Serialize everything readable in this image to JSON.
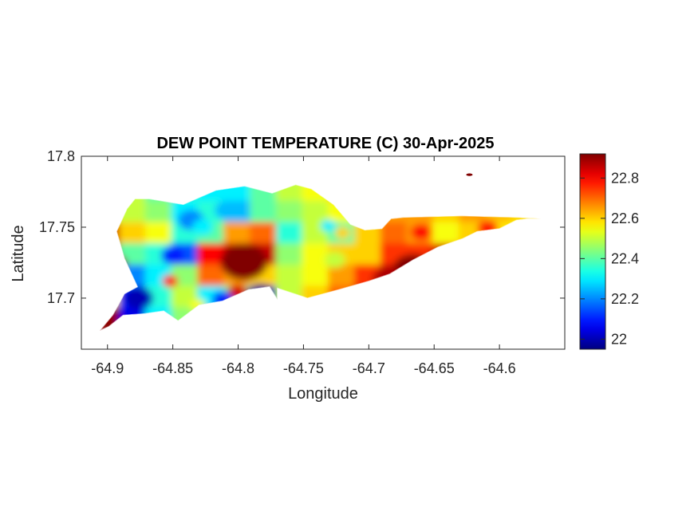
{
  "chart_data": {
    "type": "heatmap",
    "title": "DEW POINT TEMPERATURE (C) 30-Apr-2025",
    "xlabel": "Longitude",
    "ylabel": "Latitude",
    "xlim": [
      -64.92,
      -64.55
    ],
    "ylim": [
      17.664,
      17.8
    ],
    "x_ticks": [
      -64.9,
      -64.85,
      -64.8,
      -64.75,
      -64.7,
      -64.65,
      -64.6
    ],
    "x_tick_labels": [
      "-64.9",
      "-64.85",
      "-64.8",
      "-64.75",
      "-64.7",
      "-64.65",
      "-64.6"
    ],
    "y_ticks": [
      17.7,
      17.75,
      17.8
    ],
    "y_tick_labels": [
      "17.7",
      "17.75",
      "17.8"
    ],
    "colormap": "jet",
    "colorbar": {
      "range": [
        21.95,
        22.92
      ],
      "ticks": [
        22.0,
        22.2,
        22.4,
        22.6,
        22.8
      ],
      "tick_labels": [
        "22",
        "22.2",
        "22.4",
        "22.6",
        "22.8"
      ],
      "position": "right"
    },
    "region_outline": [
      [
        -64.899,
        17.68
      ],
      [
        -64.888,
        17.688
      ],
      [
        -64.872,
        17.689
      ],
      [
        -64.857,
        17.691
      ],
      [
        -64.846,
        17.684
      ],
      [
        -64.83,
        17.695
      ],
      [
        -64.812,
        17.698
      ],
      [
        -64.792,
        17.706
      ],
      [
        -64.776,
        17.708
      ],
      [
        -64.77,
        17.699
      ],
      [
        -64.77,
        17.707
      ],
      [
        -64.747,
        17.7
      ],
      [
        -64.723,
        17.706
      ],
      [
        -64.7,
        17.712
      ],
      [
        -64.684,
        17.717
      ],
      [
        -64.666,
        17.727
      ],
      [
        -64.647,
        17.736
      ],
      [
        -64.628,
        17.742
      ],
      [
        -64.617,
        17.747
      ],
      [
        -64.6,
        17.749
      ],
      [
        -64.587,
        17.755
      ],
      [
        -64.578,
        17.756
      ],
      [
        -64.568,
        17.756
      ],
      [
        -64.588,
        17.757
      ],
      [
        -64.629,
        17.758
      ],
      [
        -64.673,
        17.757
      ],
      [
        -64.683,
        17.756
      ],
      [
        -64.69,
        17.749
      ],
      [
        -64.703,
        17.748
      ],
      [
        -64.714,
        17.752
      ],
      [
        -64.727,
        17.766
      ],
      [
        -64.744,
        17.777
      ],
      [
        -64.756,
        17.78
      ],
      [
        -64.774,
        17.774
      ],
      [
        -64.795,
        17.779
      ],
      [
        -64.817,
        17.776
      ],
      [
        -64.842,
        17.766
      ],
      [
        -64.868,
        17.77
      ],
      [
        -64.879,
        17.77
      ],
      [
        -64.885,
        17.763
      ],
      [
        -64.893,
        17.747
      ],
      [
        -64.887,
        17.728
      ],
      [
        -64.877,
        17.708
      ],
      [
        -64.887,
        17.703
      ],
      [
        -64.896,
        17.688
      ],
      [
        -64.906,
        17.677
      ]
    ],
    "grid_values": {
      "lon": [
        -64.9,
        -64.88,
        -64.86,
        -64.84,
        -64.82,
        -64.8,
        -64.78,
        -64.76,
        -64.74,
        -64.72,
        -64.7,
        -64.68,
        -64.66,
        -64.64,
        -64.62,
        -64.6,
        -64.58
      ],
      "lat": [
        17.775,
        17.76,
        17.745,
        17.73,
        17.715,
        17.7,
        17.685
      ],
      "values": [
        [
          22.5,
          22.5,
          22.4,
          22.35,
          22.3,
          22.3,
          22.4,
          22.5,
          22.55,
          22.6,
          22.6,
          22.6,
          22.6,
          22.6,
          22.6,
          22.6,
          22.6
        ],
        [
          22.5,
          22.5,
          22.45,
          22.3,
          22.35,
          22.25,
          22.4,
          22.45,
          22.5,
          22.55,
          22.55,
          22.65,
          22.65,
          22.6,
          22.65,
          22.62,
          22.6
        ],
        [
          22.85,
          22.6,
          22.55,
          22.35,
          22.4,
          22.65,
          22.7,
          22.35,
          22.5,
          22.4,
          22.6,
          22.7,
          22.65,
          22.55,
          22.6,
          22.58,
          22.55
        ],
        [
          22.9,
          22.4,
          22.35,
          22.15,
          22.8,
          22.85,
          22.85,
          22.45,
          22.55,
          22.6,
          22.6,
          22.75,
          22.75,
          22.7,
          22.65,
          22.6,
          22.6
        ],
        [
          22.7,
          22.2,
          22.3,
          22.45,
          22.7,
          22.65,
          22.6,
          22.5,
          22.55,
          22.65,
          22.75,
          22.85,
          22.85,
          22.8,
          22.7,
          22.65,
          22.6
        ],
        [
          22.6,
          22.1,
          22.35,
          22.5,
          22.3,
          22.4,
          22.05,
          22.5,
          22.6,
          22.7,
          22.85,
          22.8,
          22.8,
          22.7,
          22.65,
          22.6,
          22.6
        ],
        [
          22.9,
          22.05,
          22.3,
          22.45,
          22.2,
          22.35,
          22.45,
          22.5,
          22.55,
          22.6,
          22.7,
          22.7,
          22.7,
          22.65,
          22.6,
          22.6,
          22.6
        ]
      ]
    },
    "hotspots": [
      {
        "lon": -64.7955,
        "lat": 17.7255,
        "value": 22.92,
        "radius_deg": 0.018
      },
      {
        "lon": -64.8928,
        "lat": 17.7245,
        "value": 22.92,
        "radius_deg": 0.008
      },
      {
        "lon": -64.666,
        "lat": 17.7195,
        "value": 22.92,
        "radius_deg": 0.016
      },
      {
        "lon": -64.6855,
        "lat": 17.7128,
        "value": 22.88,
        "radius_deg": 0.012
      },
      {
        "lon": -64.644,
        "lat": 17.7305,
        "value": 22.86,
        "radius_deg": 0.01
      },
      {
        "lon": -64.66,
        "lat": 17.7465,
        "value": 22.8,
        "radius_deg": 0.008
      },
      {
        "lon": -64.609,
        "lat": 17.749,
        "value": 22.78,
        "radius_deg": 0.008
      },
      {
        "lon": -64.8005,
        "lat": 17.7038,
        "value": 22.84,
        "radius_deg": 0.008
      },
      {
        "lon": -64.876,
        "lat": 17.7,
        "value": 22.0,
        "radius_deg": 0.011
      },
      {
        "lon": -64.7825,
        "lat": 17.703,
        "value": 21.97,
        "radius_deg": 0.01
      },
      {
        "lon": -64.831,
        "lat": 17.695,
        "value": 22.55,
        "radius_deg": 0.006
      },
      {
        "lon": -64.812,
        "lat": 17.699,
        "value": 22.1,
        "radius_deg": 0.008
      },
      {
        "lon": -64.85,
        "lat": 17.73,
        "value": 22.1,
        "radius_deg": 0.009
      },
      {
        "lon": -64.836,
        "lat": 17.755,
        "value": 22.2,
        "radius_deg": 0.01
      },
      {
        "lon": -64.809,
        "lat": 17.762,
        "value": 22.25,
        "radius_deg": 0.009
      },
      {
        "lon": -64.827,
        "lat": 17.75,
        "value": 22.3,
        "radius_deg": 0.008
      },
      {
        "lon": -64.72,
        "lat": 17.746,
        "value": 22.6,
        "radius_deg": 0.006
      },
      {
        "lon": -64.726,
        "lat": 17.727,
        "value": 22.5,
        "radius_deg": 0.008
      },
      {
        "lon": -64.731,
        "lat": 17.751,
        "value": 22.3,
        "radius_deg": 0.006
      },
      {
        "lon": -64.9,
        "lat": 17.68,
        "value": 22.92,
        "radius_deg": 0.004
      },
      {
        "lon": -64.852,
        "lat": 17.712,
        "value": 22.8,
        "radius_deg": 0.006
      }
    ],
    "islets": [
      {
        "lon": -64.623,
        "lat": 17.787,
        "value": 22.92
      }
    ]
  }
}
